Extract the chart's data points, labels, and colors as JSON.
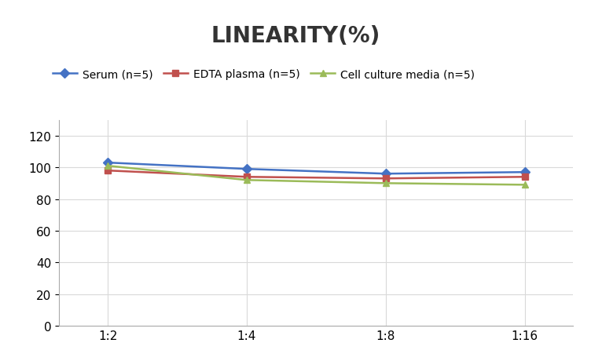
{
  "title": "LINEARITY(%)",
  "x_labels": [
    "1:2",
    "1:4",
    "1:8",
    "1:16"
  ],
  "x_positions": [
    0,
    1,
    2,
    3
  ],
  "series": [
    {
      "label": "Serum (n=5)",
      "values": [
        103,
        99,
        96,
        97
      ],
      "color": "#4472C4",
      "marker": "D",
      "marker_color": "#4472C4"
    },
    {
      "label": "EDTA plasma (n=5)",
      "values": [
        98,
        94,
        93,
        94
      ],
      "color": "#C0504D",
      "marker": "s",
      "marker_color": "#C0504D"
    },
    {
      "label": "Cell culture media (n=5)",
      "values": [
        101,
        92,
        90,
        89
      ],
      "color": "#9BBB59",
      "marker": "^",
      "marker_color": "#9BBB59"
    }
  ],
  "ylim": [
    0,
    130
  ],
  "yticks": [
    0,
    20,
    40,
    60,
    80,
    100,
    120
  ],
  "grid_color": "#D9D9D9",
  "background_color": "#FFFFFF",
  "title_fontsize": 20,
  "title_fontweight": "bold",
  "tick_fontsize": 11,
  "legend_fontsize": 10
}
